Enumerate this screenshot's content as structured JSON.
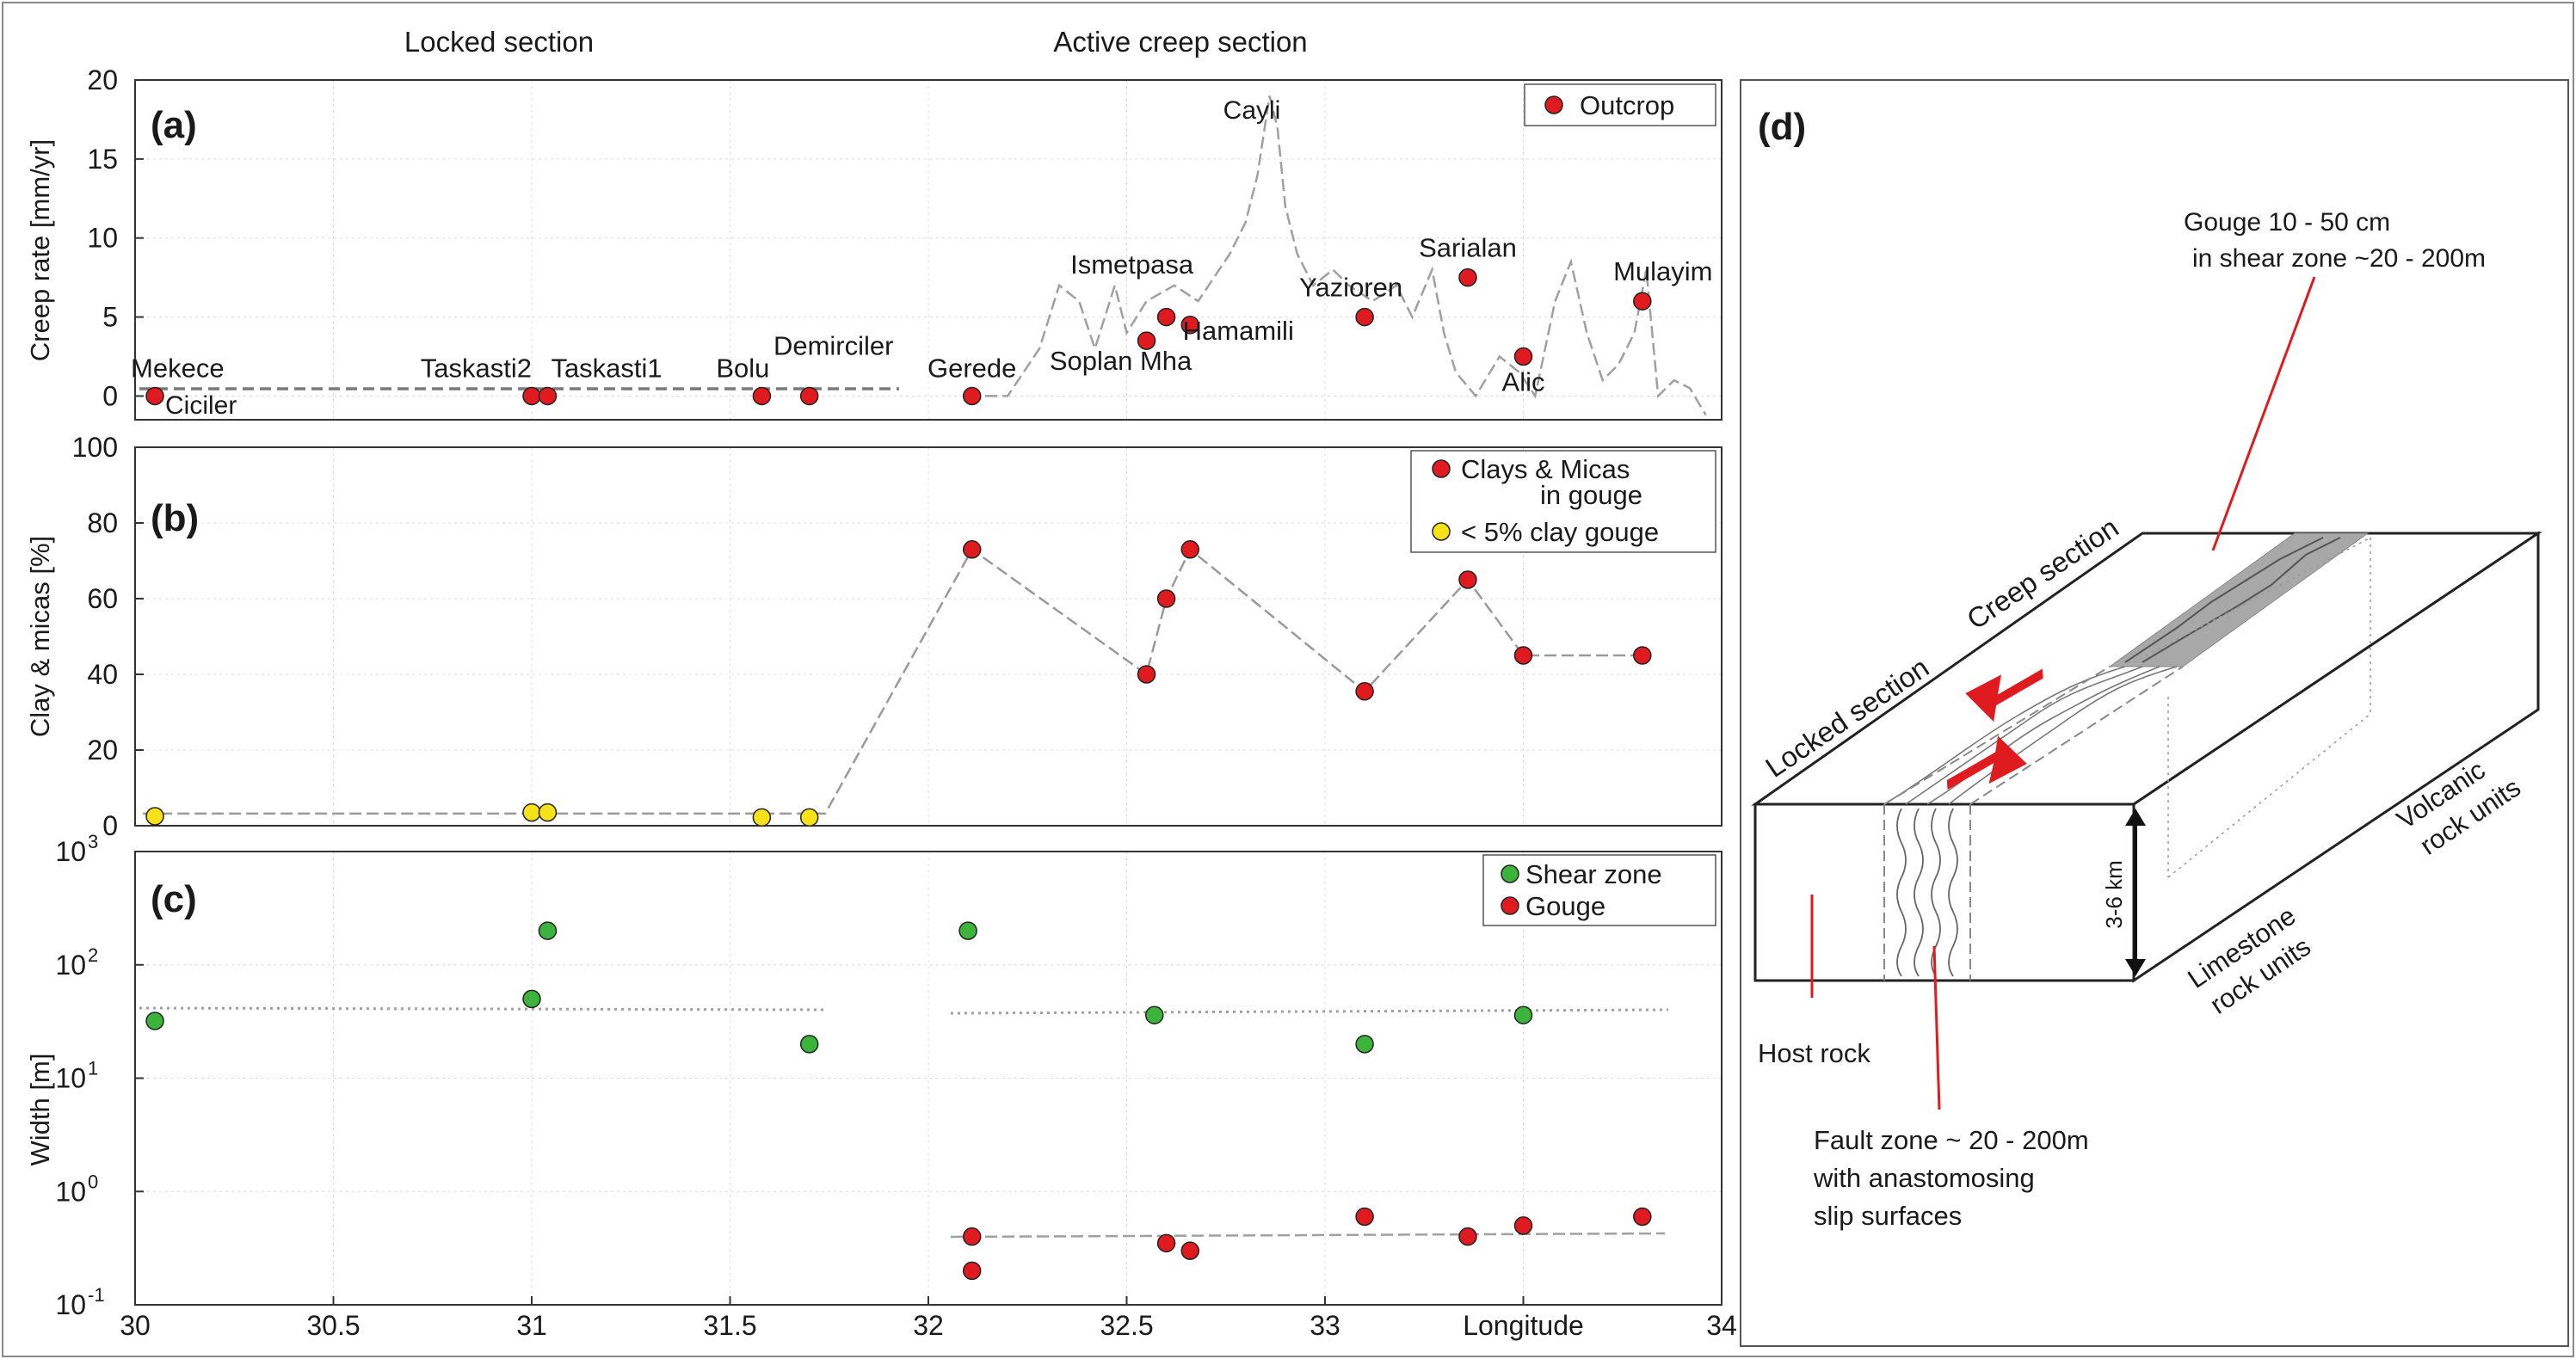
{
  "section_labels": {
    "locked": "Locked section",
    "active": "Active creep section"
  },
  "panel_labels": {
    "a": "(a)",
    "b": "(b)",
    "c": "(c)",
    "d": "(d)"
  },
  "legends": {
    "a": [
      "Outcrop"
    ],
    "b": [
      "Clays & Micas",
      "in gouge",
      "< 5% clay gouge"
    ],
    "c": [
      "Shear zone",
      "Gouge"
    ]
  },
  "colors": {
    "red": "#e01b1f",
    "yellow": "#f7e21a",
    "green": "#3cb43c",
    "dash": "#9a9a9a",
    "grey_fill": "#a8a8a8"
  },
  "chart_data": [
    {
      "type": "scatter",
      "panel": "a",
      "ylabel": "Creep rate [mm/yr]",
      "xlim": [
        30,
        34
      ],
      "ylim": [
        -1.5,
        20
      ],
      "yticks": [
        "20",
        "15",
        "10",
        "5",
        "0"
      ],
      "series": [
        {
          "name": "Outcrop",
          "points": [
            {
              "x": 30.05,
              "y": 0,
              "label": "Mekece"
            },
            {
              "x": 31.0,
              "y": 0,
              "label": "Taskasti2"
            },
            {
              "x": 31.04,
              "y": 0,
              "label": "Taskasti1"
            },
            {
              "x": 31.58,
              "y": 0,
              "label": "Bolu"
            },
            {
              "x": 31.7,
              "y": 0,
              "label": "Demirciler"
            },
            {
              "x": 32.11,
              "y": 0,
              "label": "Gerede"
            },
            {
              "x": 32.55,
              "y": 3.5,
              "label": "Soplan Mha"
            },
            {
              "x": 32.6,
              "y": 5.0,
              "label": "Ismetpasa"
            },
            {
              "x": 32.66,
              "y": 4.5,
              "label": "Hamamili"
            },
            {
              "x": 33.1,
              "y": 5.0,
              "label": "Yazioren"
            },
            {
              "x": 33.36,
              "y": 7.5,
              "label": "Sarialan"
            },
            {
              "x": 33.5,
              "y": 2.5,
              "label": "Alic"
            },
            {
              "x": 33.8,
              "y": 6.0,
              "label": "Mulayim"
            }
          ]
        }
      ],
      "extra_labels": [
        "Ciciler",
        "Cayli"
      ]
    },
    {
      "type": "scatter",
      "panel": "b",
      "ylabel": "Clay & micas [%]",
      "xlim": [
        30,
        34
      ],
      "ylim": [
        0,
        100
      ],
      "yticks": [
        "100",
        "80",
        "60",
        "40",
        "20",
        "0"
      ],
      "series": [
        {
          "name": "< 5% clay gouge",
          "points": [
            {
              "x": 30.05,
              "y": 2.5
            },
            {
              "x": 31.0,
              "y": 3.5
            },
            {
              "x": 31.04,
              "y": 3.5
            },
            {
              "x": 31.58,
              "y": 2.2
            },
            {
              "x": 31.7,
              "y": 2.2
            }
          ]
        },
        {
          "name": "Clays & Micas in gouge",
          "points": [
            {
              "x": 32.11,
              "y": 73
            },
            {
              "x": 32.55,
              "y": 40
            },
            {
              "x": 32.6,
              "y": 60
            },
            {
              "x": 32.66,
              "y": 73
            },
            {
              "x": 33.1,
              "y": 35.5
            },
            {
              "x": 33.36,
              "y": 65
            },
            {
              "x": 33.5,
              "y": 45
            },
            {
              "x": 33.8,
              "y": 45
            }
          ]
        }
      ]
    },
    {
      "type": "scatter",
      "panel": "c",
      "ylabel": "Width [m]",
      "xlabel": "Longitude",
      "log_y": true,
      "xlim": [
        30,
        34
      ],
      "ylim": [
        0.1,
        1000
      ],
      "ytick_base": "10",
      "ytick_exponents": [
        "3",
        "2",
        "1",
        "0",
        "-1"
      ],
      "xticks": [
        "30",
        "30.5",
        "31",
        "31.5",
        "32",
        "32.5",
        "33",
        "33.5",
        "34"
      ],
      "series": [
        {
          "name": "Shear zone",
          "points": [
            {
              "x": 30.05,
              "y": 32
            },
            {
              "x": 31.0,
              "y": 50
            },
            {
              "x": 31.04,
              "y": 200
            },
            {
              "x": 31.7,
              "y": 20
            },
            {
              "x": 32.1,
              "y": 200
            },
            {
              "x": 32.57,
              "y": 36
            },
            {
              "x": 33.1,
              "y": 20
            },
            {
              "x": 33.5,
              "y": 36
            }
          ]
        },
        {
          "name": "Gouge",
          "points": [
            {
              "x": 32.11,
              "y": 0.4
            },
            {
              "x": 32.11,
              "y": 0.2
            },
            {
              "x": 32.6,
              "y": 0.35
            },
            {
              "x": 32.66,
              "y": 0.3
            },
            {
              "x": 33.1,
              "y": 0.6
            },
            {
              "x": 33.36,
              "y": 0.4
            },
            {
              "x": 33.5,
              "y": 0.5
            },
            {
              "x": 33.8,
              "y": 0.6
            }
          ]
        }
      ]
    }
  ],
  "diagram_d": {
    "gouge_note": [
      "Gouge 10 - 50 cm",
      "in shear zone  ~20 - 200m"
    ],
    "creep_section": "Creep section",
    "locked_section": "Locked section",
    "volcanic": [
      "Volcanic",
      "rock units"
    ],
    "limestone": [
      "Limestone",
      "rock  units"
    ],
    "depth": "3-6 km",
    "host_rock": "Host rock",
    "fault_zone": [
      "Fault zone ~ 20 - 200m",
      "with anastomosing",
      "slip surfaces"
    ]
  }
}
